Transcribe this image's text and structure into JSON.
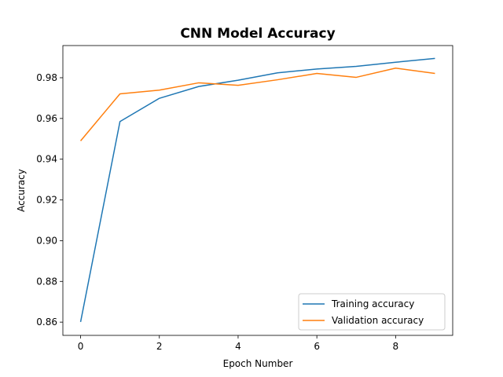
{
  "chart_data": {
    "type": "line",
    "title": "CNN Model Accuracy",
    "xlabel": "Epoch Number",
    "ylabel": "Accuracy",
    "x": [
      0,
      1,
      2,
      3,
      4,
      5,
      6,
      7,
      8,
      9
    ],
    "xlim": [
      -0.45,
      9.45
    ],
    "ylim": [
      0.8535,
      0.9958
    ],
    "xticks": [
      0,
      2,
      4,
      6,
      8
    ],
    "yticks": [
      0.86,
      0.88,
      0.9,
      0.92,
      0.94,
      0.96,
      0.98
    ],
    "grid": false,
    "legend_position": "lower-right",
    "series": [
      {
        "name": "Training accuracy",
        "color": "#1f77b4",
        "values": [
          0.8601,
          0.9585,
          0.9699,
          0.9757,
          0.9788,
          0.9824,
          0.9843,
          0.9856,
          0.9876,
          0.9895
        ]
      },
      {
        "name": "Validation accuracy",
        "color": "#ff7f0e",
        "values": [
          0.949,
          0.9721,
          0.9739,
          0.9775,
          0.9763,
          0.979,
          0.9821,
          0.9802,
          0.9847,
          0.9821
        ]
      }
    ]
  }
}
